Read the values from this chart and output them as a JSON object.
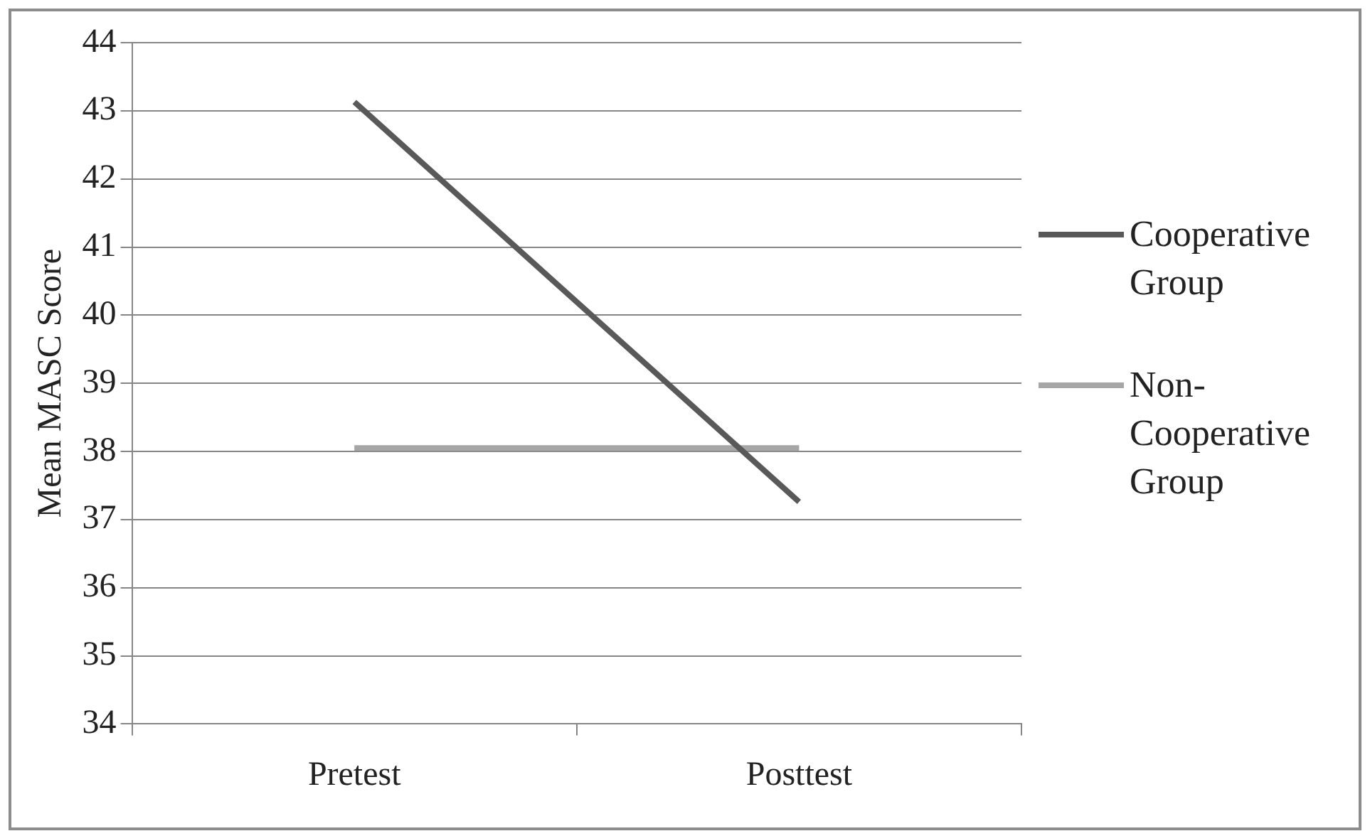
{
  "chart_data": {
    "type": "line",
    "ylabel": "Mean MASC Score",
    "categories": [
      "Pretest",
      "Posttest"
    ],
    "series": [
      {
        "name": "Cooperative Group",
        "color": "#595959",
        "values": [
          43.13,
          37.26
        ]
      },
      {
        "name": "Non-Cooperative Group",
        "color": "#a6a6a6",
        "values": [
          38.05,
          38.05
        ]
      }
    ],
    "ylim": [
      34,
      44
    ],
    "yticks": [
      34,
      35,
      36,
      37,
      38,
      39,
      40,
      41,
      42,
      43,
      44
    ],
    "grid": "y",
    "legend": "right",
    "marker": "none",
    "line_style": "solid"
  }
}
